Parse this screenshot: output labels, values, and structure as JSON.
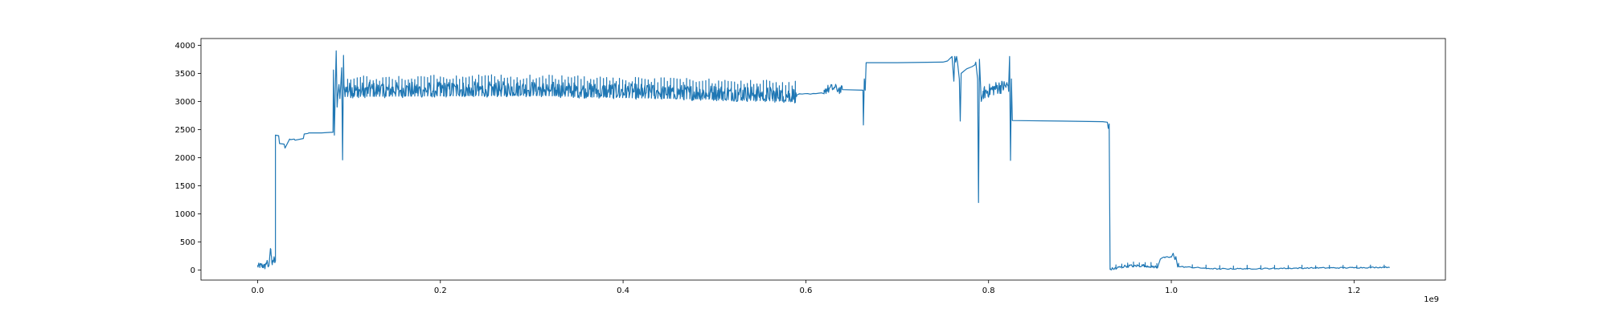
{
  "chart_data": {
    "type": "line",
    "title": "",
    "xlabel": "",
    "ylabel": "",
    "x_offset_label": "1e9",
    "xlim": [
      -0.062,
      1.3
    ],
    "ylim": [
      -180,
      4120
    ],
    "x_ticks": [
      0.0,
      0.2,
      0.4,
      0.6,
      0.8,
      1.0,
      1.2
    ],
    "x_tick_labels": [
      "0.0",
      "0.2",
      "0.4",
      "0.6",
      "0.8",
      "1.0",
      "1.2"
    ],
    "y_ticks": [
      0,
      500,
      1000,
      1500,
      2000,
      2500,
      3000,
      3500,
      4000
    ],
    "y_tick_labels": [
      "0",
      "500",
      "1000",
      "1500",
      "2000",
      "2500",
      "3000",
      "3500",
      "4000"
    ],
    "grid": false,
    "legend": "none",
    "colors": {
      "series": "#1f77b4",
      "axes": "#000000",
      "background": "#ffffff"
    },
    "series": [
      {
        "segments": [
          {
            "x": [
              0.0,
              0.004,
              0.008,
              0.01,
              0.012,
              0.014,
              0.016,
              0.018,
              0.019
            ],
            "y": [
              70,
              80,
              60,
              150,
              40,
              380,
              100,
              200,
              160
            ],
            "noise": 50,
            "step": 0.0004
          },
          {
            "x": [
              0.0195,
              0.0195
            ],
            "y": [
              160,
              2400
            ],
            "noise": 0,
            "step": 0.01
          },
          {
            "x": [
              0.0195,
              0.023,
              0.024,
              0.029,
              0.03,
              0.035,
              0.036,
              0.04,
              0.041,
              0.05,
              0.051,
              0.055,
              0.056,
              0.07,
              0.08,
              0.0825
            ],
            "y": [
              2400,
              2390,
              2250,
              2240,
              2170,
              2330,
              2320,
              2330,
              2310,
              2340,
              2420,
              2430,
              2440,
              2440,
              2450,
              2450
            ],
            "noise": 0,
            "step": 0.01
          },
          {
            "x": [
              0.0825,
              0.083,
              0.084,
              0.085,
              0.086,
              0.087,
              0.088,
              0.089,
              0.09,
              0.091,
              0.092,
              0.093,
              0.094,
              0.0945,
              0.095
            ],
            "y": [
              2450,
              3560,
              2400,
              3200,
              3900,
              2900,
              3150,
              3300,
              3050,
              3300,
              3600,
              1960,
              3820,
              3300,
              3200
            ],
            "noise": 0,
            "step": 0.01
          },
          {
            "x": [
              0.095,
              0.2,
              0.3,
              0.4,
              0.5,
              0.59
            ],
            "y": [
              3200,
              3210,
              3220,
              3180,
              3150,
              3110
            ],
            "noise": 140,
            "spike_every": 0.003,
            "spike_amp": 260,
            "step": 0.0007
          },
          {
            "x": [
              0.59,
              0.61,
              0.62
            ],
            "y": [
              3120,
              3130,
              3150
            ],
            "noise": 15,
            "step": 0.003
          },
          {
            "x": [
              0.62,
              0.63,
              0.64
            ],
            "y": [
              3200,
              3240,
              3200
            ],
            "noise": 80,
            "step": 0.0007
          },
          {
            "x": [
              0.64,
              0.6625,
              0.663,
              0.664,
              0.665,
              0.666
            ],
            "y": [
              3210,
              3200,
              2580,
              3400,
              3200,
              3690
            ],
            "noise": 0,
            "step": 0.01
          },
          {
            "x": [
              0.666,
              0.7,
              0.75,
              0.755,
              0.76,
              0.762,
              0.763,
              0.764,
              0.765,
              0.766,
              0.768,
              0.769,
              0.77
            ],
            "y": [
              3690,
              3690,
              3700,
              3720,
              3800,
              3360,
              3800,
              3700,
              3800,
              3700,
              3400,
              2650,
              3500
            ],
            "noise": 0,
            "step": 0.01
          },
          {
            "x": [
              0.77,
              0.776,
              0.782,
              0.785
            ],
            "y": [
              3500,
              3580,
              3620,
              3650
            ],
            "noise": 0,
            "step": 0.002
          },
          {
            "x": [
              0.785,
              0.786,
              0.788,
              0.789,
              0.79,
              0.792,
              0.794
            ],
            "y": [
              3650,
              3700,
              3400,
              1200,
              3750,
              3000,
              3150
            ],
            "noise": 0,
            "step": 0.01
          },
          {
            "x": [
              0.794,
              0.81,
              0.822
            ],
            "y": [
              3150,
              3250,
              3280
            ],
            "noise": 120,
            "step": 0.0005
          },
          {
            "x": [
              0.822,
              0.823,
              0.824,
              0.825,
              0.826
            ],
            "y": [
              3280,
              3800,
              1950,
              3400,
              2660
            ],
            "noise": 0,
            "step": 0.01
          },
          {
            "x": [
              0.826,
              0.88,
              0.925,
              0.93,
              0.931,
              0.932,
              0.933
            ],
            "y": [
              2660,
              2650,
              2640,
              2630,
              2520,
              2600,
              10
            ],
            "noise": 0,
            "step": 0.01
          },
          {
            "x": [
              0.933,
              0.95,
              0.97,
              0.985
            ],
            "y": [
              10,
              70,
              80,
              50
            ],
            "noise": 25,
            "spike_every": 0.006,
            "spike_amp": 70,
            "step": 0.0008
          },
          {
            "x": [
              0.985,
              0.988,
              0.99,
              1.0,
              1.002,
              1.004,
              1.005,
              1.007,
              1.008
            ],
            "y": [
              50,
              200,
              220,
              230,
              290,
              180,
              240,
              60,
              120
            ],
            "noise": 10,
            "step": 0.001
          },
          {
            "x": [
              1.008,
              1.05,
              1.1,
              1.15,
              1.2,
              1.24
            ],
            "y": [
              60,
              20,
              25,
              35,
              40,
              50
            ],
            "noise": 10,
            "spike_every": 0.015,
            "spike_amp": 60,
            "step": 0.0015
          }
        ]
      }
    ]
  }
}
